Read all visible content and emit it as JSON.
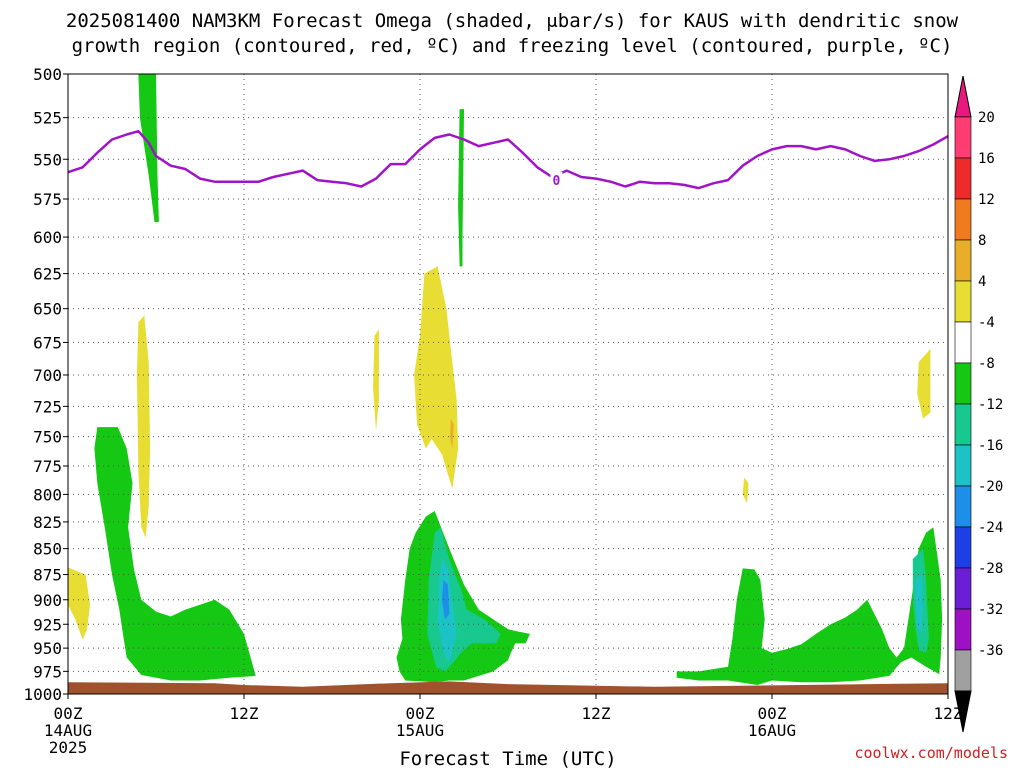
{
  "chart_data": {
    "type": "contour",
    "title_line1": "2025081400 NAM3KM Forecast Omega (shaded, μbar/s) for KAUS with dendritic snow",
    "title_line2": "growth region (contoured, red, ºC) and freezing level (contoured, purple, ºC)",
    "xlabel": "Forecast Time (UTC)",
    "credit": "coolwx.com/models",
    "x_range_hours": [
      0,
      60
    ],
    "y_range_hpa": [
      500,
      1000
    ],
    "y_scale": "log-pressure",
    "grid": "dotted",
    "x_ticks": [
      {
        "hour": 0,
        "lines": [
          "00Z",
          "14AUG",
          "2025"
        ]
      },
      {
        "hour": 12,
        "lines": [
          "12Z"
        ]
      },
      {
        "hour": 24,
        "lines": [
          "00Z",
          "15AUG"
        ]
      },
      {
        "hour": 36,
        "lines": [
          "12Z"
        ]
      },
      {
        "hour": 48,
        "lines": [
          "00Z",
          "16AUG"
        ]
      },
      {
        "hour": 60,
        "lines": [
          "12Z"
        ]
      }
    ],
    "y_ticks": [
      500,
      525,
      550,
      575,
      600,
      625,
      650,
      675,
      700,
      725,
      750,
      775,
      800,
      825,
      850,
      875,
      900,
      925,
      950,
      975,
      1000
    ],
    "colorbar": {
      "labels": [
        "20",
        "16",
        "12",
        "8",
        "4",
        "-4",
        "-8",
        "-12",
        "-16",
        "-20",
        "-24",
        "-28",
        "-32",
        "-36"
      ],
      "bins": [
        {
          "color": "#ff3d72"
        },
        {
          "color": "#ee2b2b"
        },
        {
          "color": "#f07a1e"
        },
        {
          "color": "#e8ae2a"
        },
        {
          "color": "#e7dd33"
        },
        {
          "color": "#ffffff"
        },
        {
          "color": "#14c814"
        },
        {
          "color": "#17c98e"
        },
        {
          "color": "#1bc3c6"
        },
        {
          "color": "#1e8fe8"
        },
        {
          "color": "#1f3fe6"
        },
        {
          "color": "#6a1fd6"
        },
        {
          "color": "#9e10c4"
        },
        {
          "color": "#a0a0a0"
        }
      ],
      "top_color": "#e8187d",
      "bottom_color": "#000000"
    },
    "freezing_level": {
      "color": "#a014c8",
      "label": "0",
      "label_at": {
        "hour": 33.3,
        "hpa": 563
      },
      "points": [
        [
          0,
          558
        ],
        [
          1,
          555
        ],
        [
          2,
          546
        ],
        [
          3,
          538
        ],
        [
          4,
          535
        ],
        [
          4.8,
          533
        ],
        [
          5.5,
          540
        ],
        [
          6,
          548
        ],
        [
          7,
          554
        ],
        [
          8,
          556
        ],
        [
          9,
          562
        ],
        [
          10,
          564
        ],
        [
          11,
          564
        ],
        [
          12,
          564
        ],
        [
          13,
          564
        ],
        [
          14,
          561
        ],
        [
          15,
          559
        ],
        [
          16,
          557
        ],
        [
          17,
          563
        ],
        [
          18,
          564
        ],
        [
          19,
          565
        ],
        [
          20,
          567
        ],
        [
          21,
          562
        ],
        [
          22,
          553
        ],
        [
          23,
          553
        ],
        [
          24,
          544
        ],
        [
          25,
          537
        ],
        [
          26,
          535
        ],
        [
          27,
          538
        ],
        [
          28,
          542
        ],
        [
          29,
          540
        ],
        [
          30,
          538
        ],
        [
          31,
          546
        ],
        [
          32,
          555
        ],
        [
          33,
          561
        ],
        [
          34,
          557
        ],
        [
          35,
          561
        ],
        [
          36,
          562
        ],
        [
          37,
          564
        ],
        [
          38,
          567
        ],
        [
          39,
          564
        ],
        [
          40,
          565
        ],
        [
          41,
          565
        ],
        [
          42,
          566
        ],
        [
          43,
          568
        ],
        [
          44,
          565
        ],
        [
          45,
          563
        ],
        [
          46,
          554
        ],
        [
          47,
          548
        ],
        [
          48,
          544
        ],
        [
          49,
          542
        ],
        [
          50,
          542
        ],
        [
          51,
          544
        ],
        [
          52,
          542
        ],
        [
          53,
          544
        ],
        [
          54,
          548
        ],
        [
          55,
          551
        ],
        [
          56,
          550
        ],
        [
          57,
          548
        ],
        [
          58,
          545
        ],
        [
          59,
          541
        ],
        [
          60,
          536
        ]
      ]
    },
    "surface_fill": {
      "color": "#a0522d",
      "points": [
        [
          0,
          987
        ],
        [
          10,
          988
        ],
        [
          12,
          990
        ],
        [
          16,
          992
        ],
        [
          22,
          988
        ],
        [
          26,
          986
        ],
        [
          30,
          989
        ],
        [
          40,
          992
        ],
        [
          50,
          990
        ],
        [
          60,
          988
        ]
      ]
    },
    "omega_regions": [
      {
        "level": "4",
        "color": "#e7dd33",
        "points": [
          [
            0,
            868
          ],
          [
            1.2,
            875
          ],
          [
            1.5,
            905
          ],
          [
            1.3,
            930
          ],
          [
            1,
            941
          ],
          [
            0.5,
            920
          ],
          [
            0,
            905
          ]
        ]
      },
      {
        "level": "4",
        "color": "#e7dd33",
        "points": [
          [
            4.8,
            660
          ],
          [
            5.2,
            655
          ],
          [
            5.5,
            690
          ],
          [
            5.6,
            760
          ],
          [
            5.5,
            810
          ],
          [
            5.3,
            840
          ],
          [
            5,
            830
          ],
          [
            4.8,
            780
          ],
          [
            4.7,
            700
          ]
        ]
      },
      {
        "level": "4",
        "color": "#e7dd33",
        "points": [
          [
            20.9,
            670
          ],
          [
            21.2,
            665
          ],
          [
            21.2,
            720
          ],
          [
            21,
            745
          ],
          [
            20.8,
            710
          ]
        ]
      },
      {
        "level": "4",
        "color": "#e7dd33",
        "points": [
          [
            24.3,
            625
          ],
          [
            25.2,
            620
          ],
          [
            25.8,
            650
          ],
          [
            26.2,
            690
          ],
          [
            26.5,
            720
          ],
          [
            26.6,
            760
          ],
          [
            26.2,
            795
          ],
          [
            25.5,
            765
          ],
          [
            24.8,
            752
          ],
          [
            24.4,
            760
          ],
          [
            23.8,
            740
          ],
          [
            23.6,
            700
          ],
          [
            24,
            670
          ]
        ]
      },
      {
        "level": "8",
        "color": "#e8ae2a",
        "points": [
          [
            26.1,
            735
          ],
          [
            26.3,
            740
          ],
          [
            26.2,
            760
          ],
          [
            26.05,
            750
          ]
        ]
      },
      {
        "level": "4",
        "color": "#e7dd33",
        "points": [
          [
            46.1,
            785
          ],
          [
            46.4,
            790
          ],
          [
            46.3,
            808
          ],
          [
            46,
            800
          ]
        ]
      },
      {
        "level": "4",
        "color": "#e7dd33",
        "points": [
          [
            58,
            690
          ],
          [
            58.8,
            680
          ],
          [
            58.8,
            730
          ],
          [
            58.3,
            735
          ],
          [
            57.9,
            715
          ]
        ]
      },
      {
        "level": "-4",
        "color": "#14c814",
        "points": [
          [
            4.8,
            500
          ],
          [
            6,
            500
          ],
          [
            6.1,
            560
          ],
          [
            6.2,
            590
          ],
          [
            5.9,
            590
          ],
          [
            5.5,
            560
          ],
          [
            4.9,
            525
          ]
        ]
      },
      {
        "level": "-4",
        "color": "#14c814",
        "points": [
          [
            26.7,
            520
          ],
          [
            27,
            520
          ],
          [
            26.9,
            600
          ],
          [
            26.9,
            620
          ],
          [
            26.7,
            620
          ],
          [
            26.6,
            580
          ]
        ]
      },
      {
        "level": "-4",
        "color": "#14c814",
        "points": [
          [
            2,
            742
          ],
          [
            3.4,
            742
          ],
          [
            4,
            760
          ],
          [
            4.4,
            790
          ],
          [
            4.1,
            830
          ],
          [
            4.5,
            870
          ],
          [
            5,
            900
          ],
          [
            6,
            912
          ],
          [
            7,
            917
          ],
          [
            8,
            910
          ],
          [
            9,
            905
          ],
          [
            10,
            900
          ],
          [
            11,
            910
          ],
          [
            12,
            935
          ],
          [
            12.8,
            980
          ],
          [
            11,
            982
          ],
          [
            9,
            985
          ],
          [
            7,
            985
          ],
          [
            5,
            979
          ],
          [
            4,
            960
          ],
          [
            3.8,
            940
          ],
          [
            3.5,
            910
          ],
          [
            3,
            875
          ],
          [
            2.5,
            830
          ],
          [
            2,
            790
          ],
          [
            1.8,
            760
          ]
        ]
      },
      {
        "level": "-4",
        "color": "#14c814",
        "points": [
          [
            24.4,
            820
          ],
          [
            25,
            815
          ],
          [
            26,
            850
          ],
          [
            27,
            885
          ],
          [
            28,
            910
          ],
          [
            29,
            920
          ],
          [
            30,
            930
          ],
          [
            30.5,
            932
          ],
          [
            31.5,
            935
          ],
          [
            31.2,
            945
          ],
          [
            30.5,
            945
          ],
          [
            30.2,
            955
          ],
          [
            30,
            963
          ],
          [
            29,
            975
          ],
          [
            27,
            985
          ],
          [
            26,
            985
          ],
          [
            25,
            987
          ],
          [
            23,
            985
          ],
          [
            22.6,
            975
          ],
          [
            22.4,
            960
          ],
          [
            22.8,
            940
          ],
          [
            22.7,
            920
          ],
          [
            23,
            880
          ],
          [
            23.3,
            850
          ],
          [
            23.7,
            835
          ]
        ]
      },
      {
        "level": "-4",
        "color": "#14c814",
        "points": [
          [
            46,
            869
          ],
          [
            46.8,
            870
          ],
          [
            47.2,
            880
          ],
          [
            47.5,
            920
          ],
          [
            47.3,
            950
          ],
          [
            48,
            955
          ],
          [
            49,
            951
          ],
          [
            50,
            946
          ],
          [
            51,
            935
          ],
          [
            52,
            925
          ],
          [
            53,
            918
          ],
          [
            53.8,
            910
          ],
          [
            54.5,
            900
          ],
          [
            55.5,
            930
          ],
          [
            56,
            950
          ],
          [
            56.5,
            960
          ],
          [
            57,
            950
          ],
          [
            57.3,
            920
          ],
          [
            57.7,
            880
          ],
          [
            58,
            850
          ],
          [
            58.5,
            835
          ],
          [
            59,
            830
          ],
          [
            59.5,
            880
          ],
          [
            59.6,
            920
          ],
          [
            59.5,
            960
          ],
          [
            59.4,
            978
          ],
          [
            58.5,
            970
          ],
          [
            57.5,
            960
          ],
          [
            56.8,
            965
          ],
          [
            56,
            980
          ],
          [
            54,
            985
          ],
          [
            52,
            987
          ],
          [
            50,
            987
          ],
          [
            48,
            985
          ],
          [
            47,
            990
          ],
          [
            45,
            985
          ],
          [
            43,
            985
          ],
          [
            41.5,
            982
          ],
          [
            41.5,
            975
          ],
          [
            43,
            975
          ],
          [
            45,
            970
          ],
          [
            45.3,
            940
          ],
          [
            45.6,
            900
          ]
        ]
      },
      {
        "level": "-8",
        "color": "#17c98e",
        "points": [
          [
            25,
            835
          ],
          [
            25.4,
            830
          ],
          [
            26,
            860
          ],
          [
            26.8,
            890
          ],
          [
            27.2,
            910
          ],
          [
            28.4,
            920
          ],
          [
            29.5,
            935
          ],
          [
            29.2,
            945
          ],
          [
            27.5,
            945
          ],
          [
            26.8,
            955
          ],
          [
            26.3,
            965
          ],
          [
            25.7,
            975
          ],
          [
            25.1,
            970
          ],
          [
            24.5,
            935
          ],
          [
            24.6,
            880
          ]
        ]
      },
      {
        "level": "-12",
        "color": "#1bc3c6",
        "points": [
          [
            25.5,
            860
          ],
          [
            25.9,
            870
          ],
          [
            26.2,
            900
          ],
          [
            26.5,
            935
          ],
          [
            26,
            965
          ],
          [
            25.6,
            955
          ],
          [
            25.2,
            920
          ],
          [
            25.3,
            880
          ]
        ]
      },
      {
        "level": "-16",
        "color": "#1e8fe8",
        "points": [
          [
            25.6,
            880
          ],
          [
            25.9,
            885
          ],
          [
            26,
            915
          ],
          [
            25.7,
            920
          ],
          [
            25.5,
            900
          ]
        ]
      },
      {
        "level": "-8",
        "color": "#17c98e",
        "points": [
          [
            57.6,
            860
          ],
          [
            58.3,
            850
          ],
          [
            58.5,
            880
          ],
          [
            58.7,
            940
          ],
          [
            58.5,
            955
          ],
          [
            58,
            952
          ],
          [
            57.8,
            930
          ],
          [
            57.6,
            900
          ]
        ]
      },
      {
        "level": "-12",
        "color": "#1bc3c6",
        "points": [
          [
            57.8,
            880
          ],
          [
            58.2,
            875
          ],
          [
            58.3,
            910
          ],
          [
            58.2,
            935
          ],
          [
            57.9,
            930
          ],
          [
            57.8,
            905
          ]
        ]
      }
    ]
  }
}
